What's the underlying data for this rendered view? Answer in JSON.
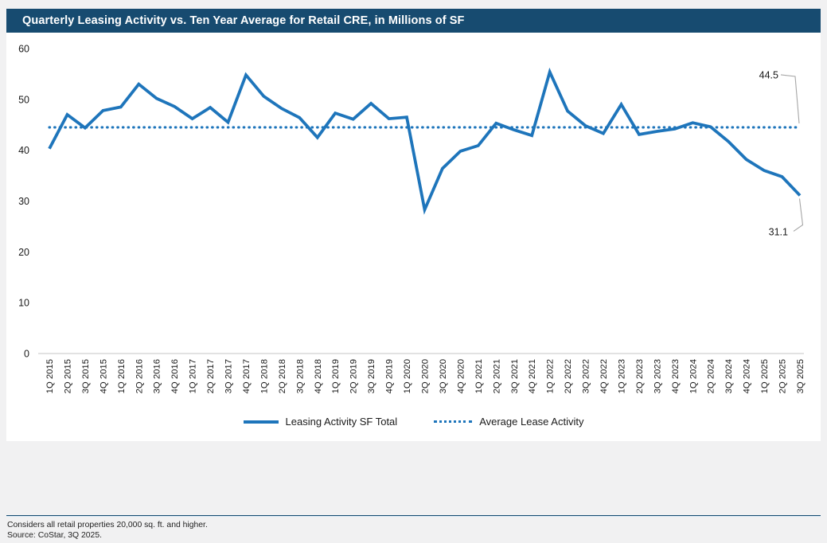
{
  "header": {
    "title": "Quarterly Leasing Activity vs. Ten Year Average for Retail CRE, in Millions of SF"
  },
  "chart_data": {
    "type": "line",
    "title": "Quarterly Leasing Activity vs. Ten Year Average for Retail CRE, in Millions of SF",
    "xlabel": "",
    "ylabel": "",
    "ylim": [
      0,
      60
    ],
    "yticks": [
      0,
      10,
      20,
      30,
      40,
      50,
      60
    ],
    "grid": false,
    "legend_position": "bottom",
    "categories": [
      "1Q 2015",
      "2Q 2015",
      "3Q 2015",
      "4Q 2015",
      "1Q 2016",
      "2Q 2016",
      "3Q 2016",
      "4Q 2016",
      "1Q 2017",
      "2Q 2017",
      "3Q 2017",
      "4Q 2017",
      "1Q 2018",
      "2Q 2018",
      "3Q 2018",
      "4Q 2018",
      "1Q 2019",
      "2Q 2019",
      "3Q 2019",
      "4Q 2019",
      "1Q 2020",
      "2Q 2020",
      "3Q 2020",
      "4Q 2020",
      "1Q 2021",
      "2Q 2021",
      "3Q 2021",
      "4Q 2021",
      "1Q 2022",
      "2Q 2022",
      "3Q 2022",
      "4Q 2022",
      "1Q 2023",
      "2Q 2023",
      "3Q 2023",
      "4Q 2023",
      "1Q 2024",
      "2Q 2024",
      "3Q 2024",
      "4Q 2024",
      "1Q 2025",
      "2Q 2025",
      "3Q 2025"
    ],
    "series": [
      {
        "name": "Leasing Activity SF Total",
        "style": "solid",
        "values": [
          40.3,
          47.0,
          44.4,
          47.8,
          48.5,
          53.0,
          50.2,
          48.6,
          46.2,
          48.4,
          45.5,
          54.8,
          50.6,
          48.2,
          46.4,
          42.5,
          47.3,
          46.1,
          49.2,
          46.2,
          46.5,
          28.3,
          36.4,
          39.8,
          40.9,
          45.3,
          44.0,
          42.9,
          55.4,
          47.7,
          44.8,
          43.3,
          49.0,
          43.1,
          43.7,
          44.2,
          45.4,
          44.6,
          41.7,
          38.2,
          36.0,
          34.8,
          31.1
        ]
      },
      {
        "name": "Average Lease Activity",
        "style": "dotted",
        "value": 44.5
      }
    ],
    "annotations": [
      {
        "label": "44.5",
        "value": 44.5,
        "attaches_to": "average_line_end"
      },
      {
        "label": "31.1",
        "value": 31.1,
        "attaches_to": "last_point"
      }
    ],
    "colors": {
      "line": "#1E75BB",
      "average_line": "#1E75BB",
      "title_bar": "#174B70",
      "axis": "#d9d9d9",
      "callout": "#a6a6a6"
    }
  },
  "legend": {
    "items": [
      {
        "label": "Leasing Activity SF Total"
      },
      {
        "label": "Average Lease Activity"
      }
    ]
  },
  "footer": {
    "note": "Considers all retail properties 20,000 sq. ft. and higher.",
    "source": "Source: CoStar, 3Q 2025."
  }
}
